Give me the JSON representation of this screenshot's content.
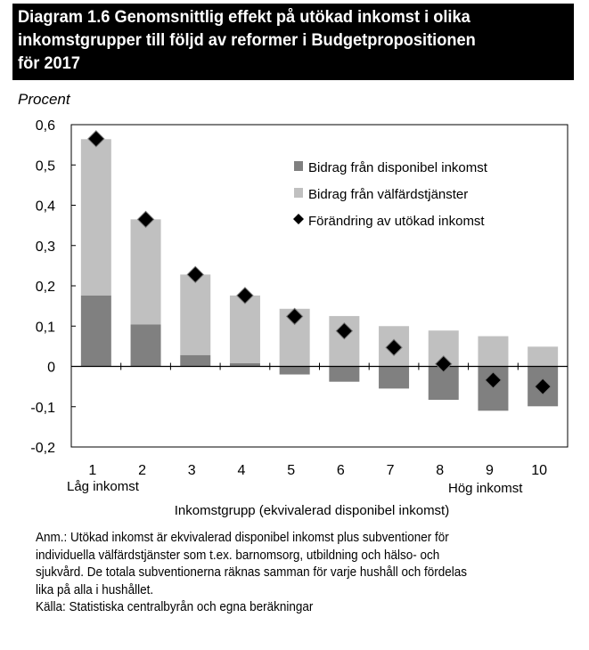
{
  "title_lines": [
    "Diagram 1.6 Genomsnittlig effekt på utökad inkomst i olika",
    "inkomstgrupper till följd av reformer i Budgetpropositionen",
    "för 2017"
  ],
  "chart_data": {
    "type": "bar",
    "title": "Diagram 1.6 Genomsnittlig effekt på utökad inkomst i olika inkomstgrupper till följd av reformer i Budgetpropositionen för 2017",
    "ylabel": "Procent",
    "xlabel": "Inkomstgrupp (ekvivalerad disponibel inkomst)",
    "categories": [
      "1",
      "2",
      "3",
      "4",
      "5",
      "6",
      "7",
      "8",
      "9",
      "10"
    ],
    "x_sublabels": {
      "first": "Låg inkomst",
      "last": "Hög inkomst"
    },
    "ylim": [
      -0.2,
      0.6
    ],
    "yticks": [
      -0.2,
      -0.1,
      0,
      0.1,
      0.2,
      0.3,
      0.4,
      0.5,
      0.6
    ],
    "ytick_labels": [
      "-0,2",
      "-0,1",
      "0",
      "0,1",
      "0,2",
      "0,3",
      "0,4",
      "0,5",
      "0,6"
    ],
    "legend_position": "top-right",
    "stacked": true,
    "series": [
      {
        "name": "Bidrag från disponibel inkomst",
        "type": "bar",
        "color": "#808080",
        "values": [
          0.176,
          0.104,
          0.028,
          0.008,
          -0.02,
          -0.038,
          -0.055,
          -0.083,
          -0.11,
          -0.099
        ]
      },
      {
        "name": "Bidrag från välfärdstjänster",
        "type": "bar",
        "color": "#c0c0c0",
        "values": [
          0.388,
          0.261,
          0.2,
          0.168,
          0.143,
          0.125,
          0.1,
          0.089,
          0.075,
          0.049
        ]
      },
      {
        "name": "Förändring av utökad inkomst",
        "type": "scatter",
        "marker": "diamond",
        "color": "#000000",
        "values": [
          0.565,
          0.365,
          0.228,
          0.176,
          0.124,
          0.088,
          0.047,
          0.006,
          -0.034,
          -0.05
        ]
      }
    ]
  },
  "note_lines": [
    "Anm.: Utökad inkomst är ekvivalerad disponibel inkomst plus subventioner för",
    "individuella välfärdstjänster som t.ex. barnomsorg, utbildning och hälso- och",
    "sjukvård. De totala subventionerna räknas samman för varje hushåll och fördelas",
    "lika på alla i hushållet.",
    "Källa: Statistiska centralbyrån och egna beräkningar"
  ]
}
